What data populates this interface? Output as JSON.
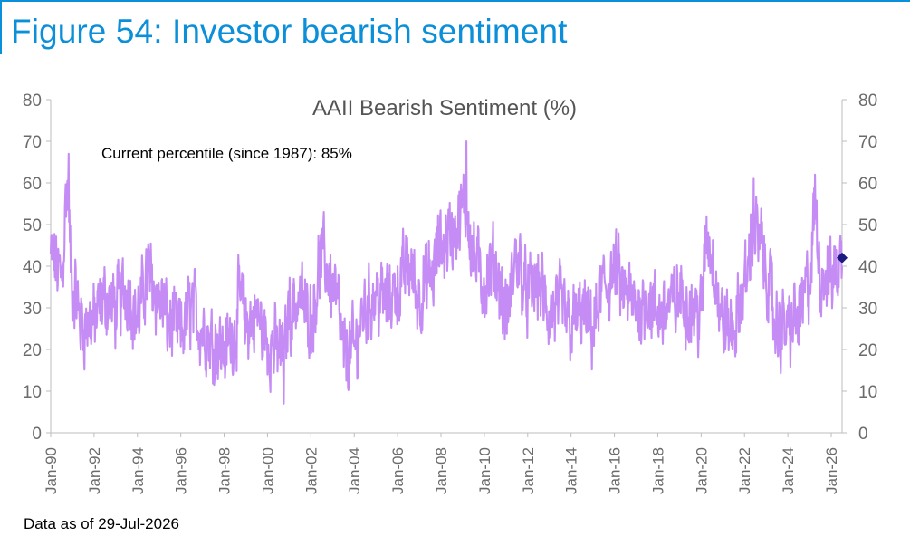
{
  "figure_title": "Figure 54: Investor bearish sentiment",
  "footnote": "Data as of 29-Jul-2026",
  "chart_data": {
    "type": "line",
    "title": "AAII Bearish Sentiment (%)",
    "annotation": "Current percentile (since 1987): 85%",
    "ylim": [
      0,
      80
    ],
    "yticks": [
      0,
      10,
      20,
      30,
      40,
      50,
      60,
      70,
      80
    ],
    "secondary_y_axis": true,
    "grid": false,
    "x_range": [
      "Jan-90",
      "Jul-26"
    ],
    "xtick_labels": [
      "Jan-90",
      "Jan-92",
      "Jan-94",
      "Jan-96",
      "Jan-98",
      "Jan-00",
      "Jan-02",
      "Jan-04",
      "Jan-06",
      "Jan-08",
      "Jan-10",
      "Jan-12",
      "Jan-14",
      "Jan-16",
      "Jan-18",
      "Jan-20",
      "Jan-22",
      "Jan-24",
      "Jan-26"
    ],
    "series": [
      {
        "color": "#c58cf5",
        "frequency": "weekly",
        "anchors": [
          {
            "x": "Jan-90",
            "y": 42
          },
          {
            "x": "Jul-90",
            "y": 38
          },
          {
            "x": "Oct-90",
            "y": 58
          },
          {
            "x": "Jan-91",
            "y": 35
          },
          {
            "x": "Jul-91",
            "y": 26
          },
          {
            "x": "Jan-92",
            "y": 27
          },
          {
            "x": "Jul-92",
            "y": 32
          },
          {
            "x": "Jan-93",
            "y": 30
          },
          {
            "x": "Jul-93",
            "y": 35
          },
          {
            "x": "Jan-94",
            "y": 28
          },
          {
            "x": "Jul-94",
            "y": 38
          },
          {
            "x": "Jan-95",
            "y": 32
          },
          {
            "x": "Jul-95",
            "y": 26
          },
          {
            "x": "Jan-96",
            "y": 24
          },
          {
            "x": "Jul-96",
            "y": 30
          },
          {
            "x": "Jan-97",
            "y": 25
          },
          {
            "x": "Jul-97",
            "y": 22
          },
          {
            "x": "Jan-98",
            "y": 20
          },
          {
            "x": "Jul-98",
            "y": 24
          },
          {
            "x": "Oct-98",
            "y": 33
          },
          {
            "x": "Jan-99",
            "y": 26
          },
          {
            "x": "Jul-99",
            "y": 28
          },
          {
            "x": "Jan-00",
            "y": 22
          },
          {
            "x": "Jul-00",
            "y": 20
          },
          {
            "x": "Oct-00",
            "y": 18
          },
          {
            "x": "Jan-01",
            "y": 30
          },
          {
            "x": "Jul-01",
            "y": 32
          },
          {
            "x": "Jan-02",
            "y": 28
          },
          {
            "x": "Jul-02",
            "y": 42
          },
          {
            "x": "Jan-03",
            "y": 36
          },
          {
            "x": "Apr-03",
            "y": 30
          },
          {
            "x": "Jul-03",
            "y": 19
          },
          {
            "x": "Jan-04",
            "y": 20
          },
          {
            "x": "Jul-04",
            "y": 30
          },
          {
            "x": "Jan-05",
            "y": 33
          },
          {
            "x": "Jul-05",
            "y": 32
          },
          {
            "x": "Jan-06",
            "y": 35
          },
          {
            "x": "Jul-06",
            "y": 40
          },
          {
            "x": "Jan-07",
            "y": 33
          },
          {
            "x": "Jul-07",
            "y": 37
          },
          {
            "x": "Jan-08",
            "y": 45
          },
          {
            "x": "Jul-08",
            "y": 48
          },
          {
            "x": "Oct-08",
            "y": 50
          },
          {
            "x": "Mar-09",
            "y": 55
          },
          {
            "x": "Jul-09",
            "y": 42
          },
          {
            "x": "Jan-10",
            "y": 36
          },
          {
            "x": "Jul-10",
            "y": 40
          },
          {
            "x": "Jan-11",
            "y": 28
          },
          {
            "x": "Jul-11",
            "y": 42
          },
          {
            "x": "Jan-12",
            "y": 33
          },
          {
            "x": "Jul-12",
            "y": 36
          },
          {
            "x": "Jan-13",
            "y": 28
          },
          {
            "x": "Jul-13",
            "y": 30
          },
          {
            "x": "Jan-14",
            "y": 26
          },
          {
            "x": "Jul-14",
            "y": 28
          },
          {
            "x": "Jan-15",
            "y": 25
          },
          {
            "x": "Jul-15",
            "y": 35
          },
          {
            "x": "Jan-16",
            "y": 38
          },
          {
            "x": "Jul-16",
            "y": 33
          },
          {
            "x": "Jan-17",
            "y": 30
          },
          {
            "x": "Jul-17",
            "y": 32
          },
          {
            "x": "Jan-18",
            "y": 28
          },
          {
            "x": "Jul-18",
            "y": 30
          },
          {
            "x": "Jan-19",
            "y": 33
          },
          {
            "x": "Jul-19",
            "y": 30
          },
          {
            "x": "Jan-20",
            "y": 28
          },
          {
            "x": "Apr-20",
            "y": 48
          },
          {
            "x": "Jul-20",
            "y": 42
          },
          {
            "x": "Jan-21",
            "y": 26
          },
          {
            "x": "Jul-21",
            "y": 25
          },
          {
            "x": "Jan-22",
            "y": 35
          },
          {
            "x": "Jun-22",
            "y": 50
          },
          {
            "x": "Oct-22",
            "y": 45
          },
          {
            "x": "Jan-23",
            "y": 38
          },
          {
            "x": "Jul-23",
            "y": 25
          },
          {
            "x": "Jan-24",
            "y": 25
          },
          {
            "x": "Jul-24",
            "y": 28
          },
          {
            "x": "Jan-25",
            "y": 36
          },
          {
            "x": "Apr-25",
            "y": 52
          },
          {
            "x": "Jul-25",
            "y": 38
          },
          {
            "x": "Jan-26",
            "y": 38
          },
          {
            "x": "Jul-26",
            "y": 41
          }
        ],
        "notable_values": [
          {
            "x": "Nov-90",
            "y": 67
          },
          {
            "x": "Mar-09",
            "y": 70
          },
          {
            "x": "Oct-00",
            "y": 7
          },
          {
            "x": "Apr-20",
            "y": 52
          },
          {
            "x": "Jun-22",
            "y": 61
          },
          {
            "x": "Apr-25",
            "y": 62
          }
        ]
      }
    ],
    "current_marker": {
      "x": "Jul-26",
      "y": 42,
      "color": "#1a1a80"
    }
  }
}
